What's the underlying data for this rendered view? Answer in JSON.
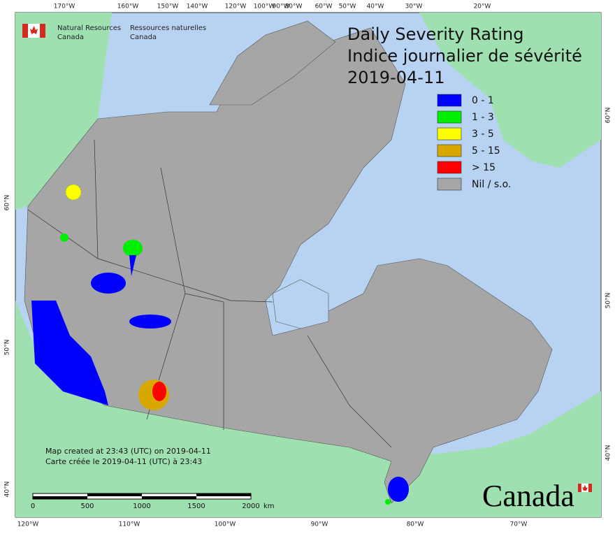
{
  "header": {
    "org_en": [
      "Natural Resources",
      "Canada"
    ],
    "org_fr": [
      "Ressources naturelles",
      "Canada"
    ]
  },
  "title": [
    "Daily Severity Rating",
    "Indice journalier de sévérité",
    "2019-04-11"
  ],
  "legend": [
    {
      "label": "0 - 1",
      "color": "#0000ff"
    },
    {
      "label": "1 - 3",
      "color": "#00ee00"
    },
    {
      "label": "3 - 5",
      "color": "#ffff00"
    },
    {
      "label": "5 - 15",
      "color": "#d8a800"
    },
    {
      "label": "> 15",
      "color": "#ff0000"
    },
    {
      "label": "Nil / s.o.",
      "color": "#a6a6a6"
    }
  ],
  "graticule": {
    "top": [
      "170°W",
      "160°W",
      "150°W",
      "140°W",
      "120°W",
      "100°W",
      "90°W",
      "80°W",
      "60°W",
      "50°W",
      "40°W",
      "30°W",
      "20°W"
    ],
    "bottom": [
      "120°W",
      "110°W",
      "100°W",
      "90°W",
      "80°W",
      "70°W"
    ],
    "left": [
      "60°N",
      "50°N",
      "40°N"
    ],
    "right": [
      "60°N",
      "50°N",
      "40°N"
    ]
  },
  "credits": [
    "Map created at 23:43 (UTC) on 2019-04-11",
    "Carte créée le 2019-04-11 (UTC) à 23:43"
  ],
  "scale_bar": {
    "ticks": [
      0,
      500,
      1000,
      1500,
      2000
    ],
    "unit": "km"
  },
  "wordmark": "Canada"
}
